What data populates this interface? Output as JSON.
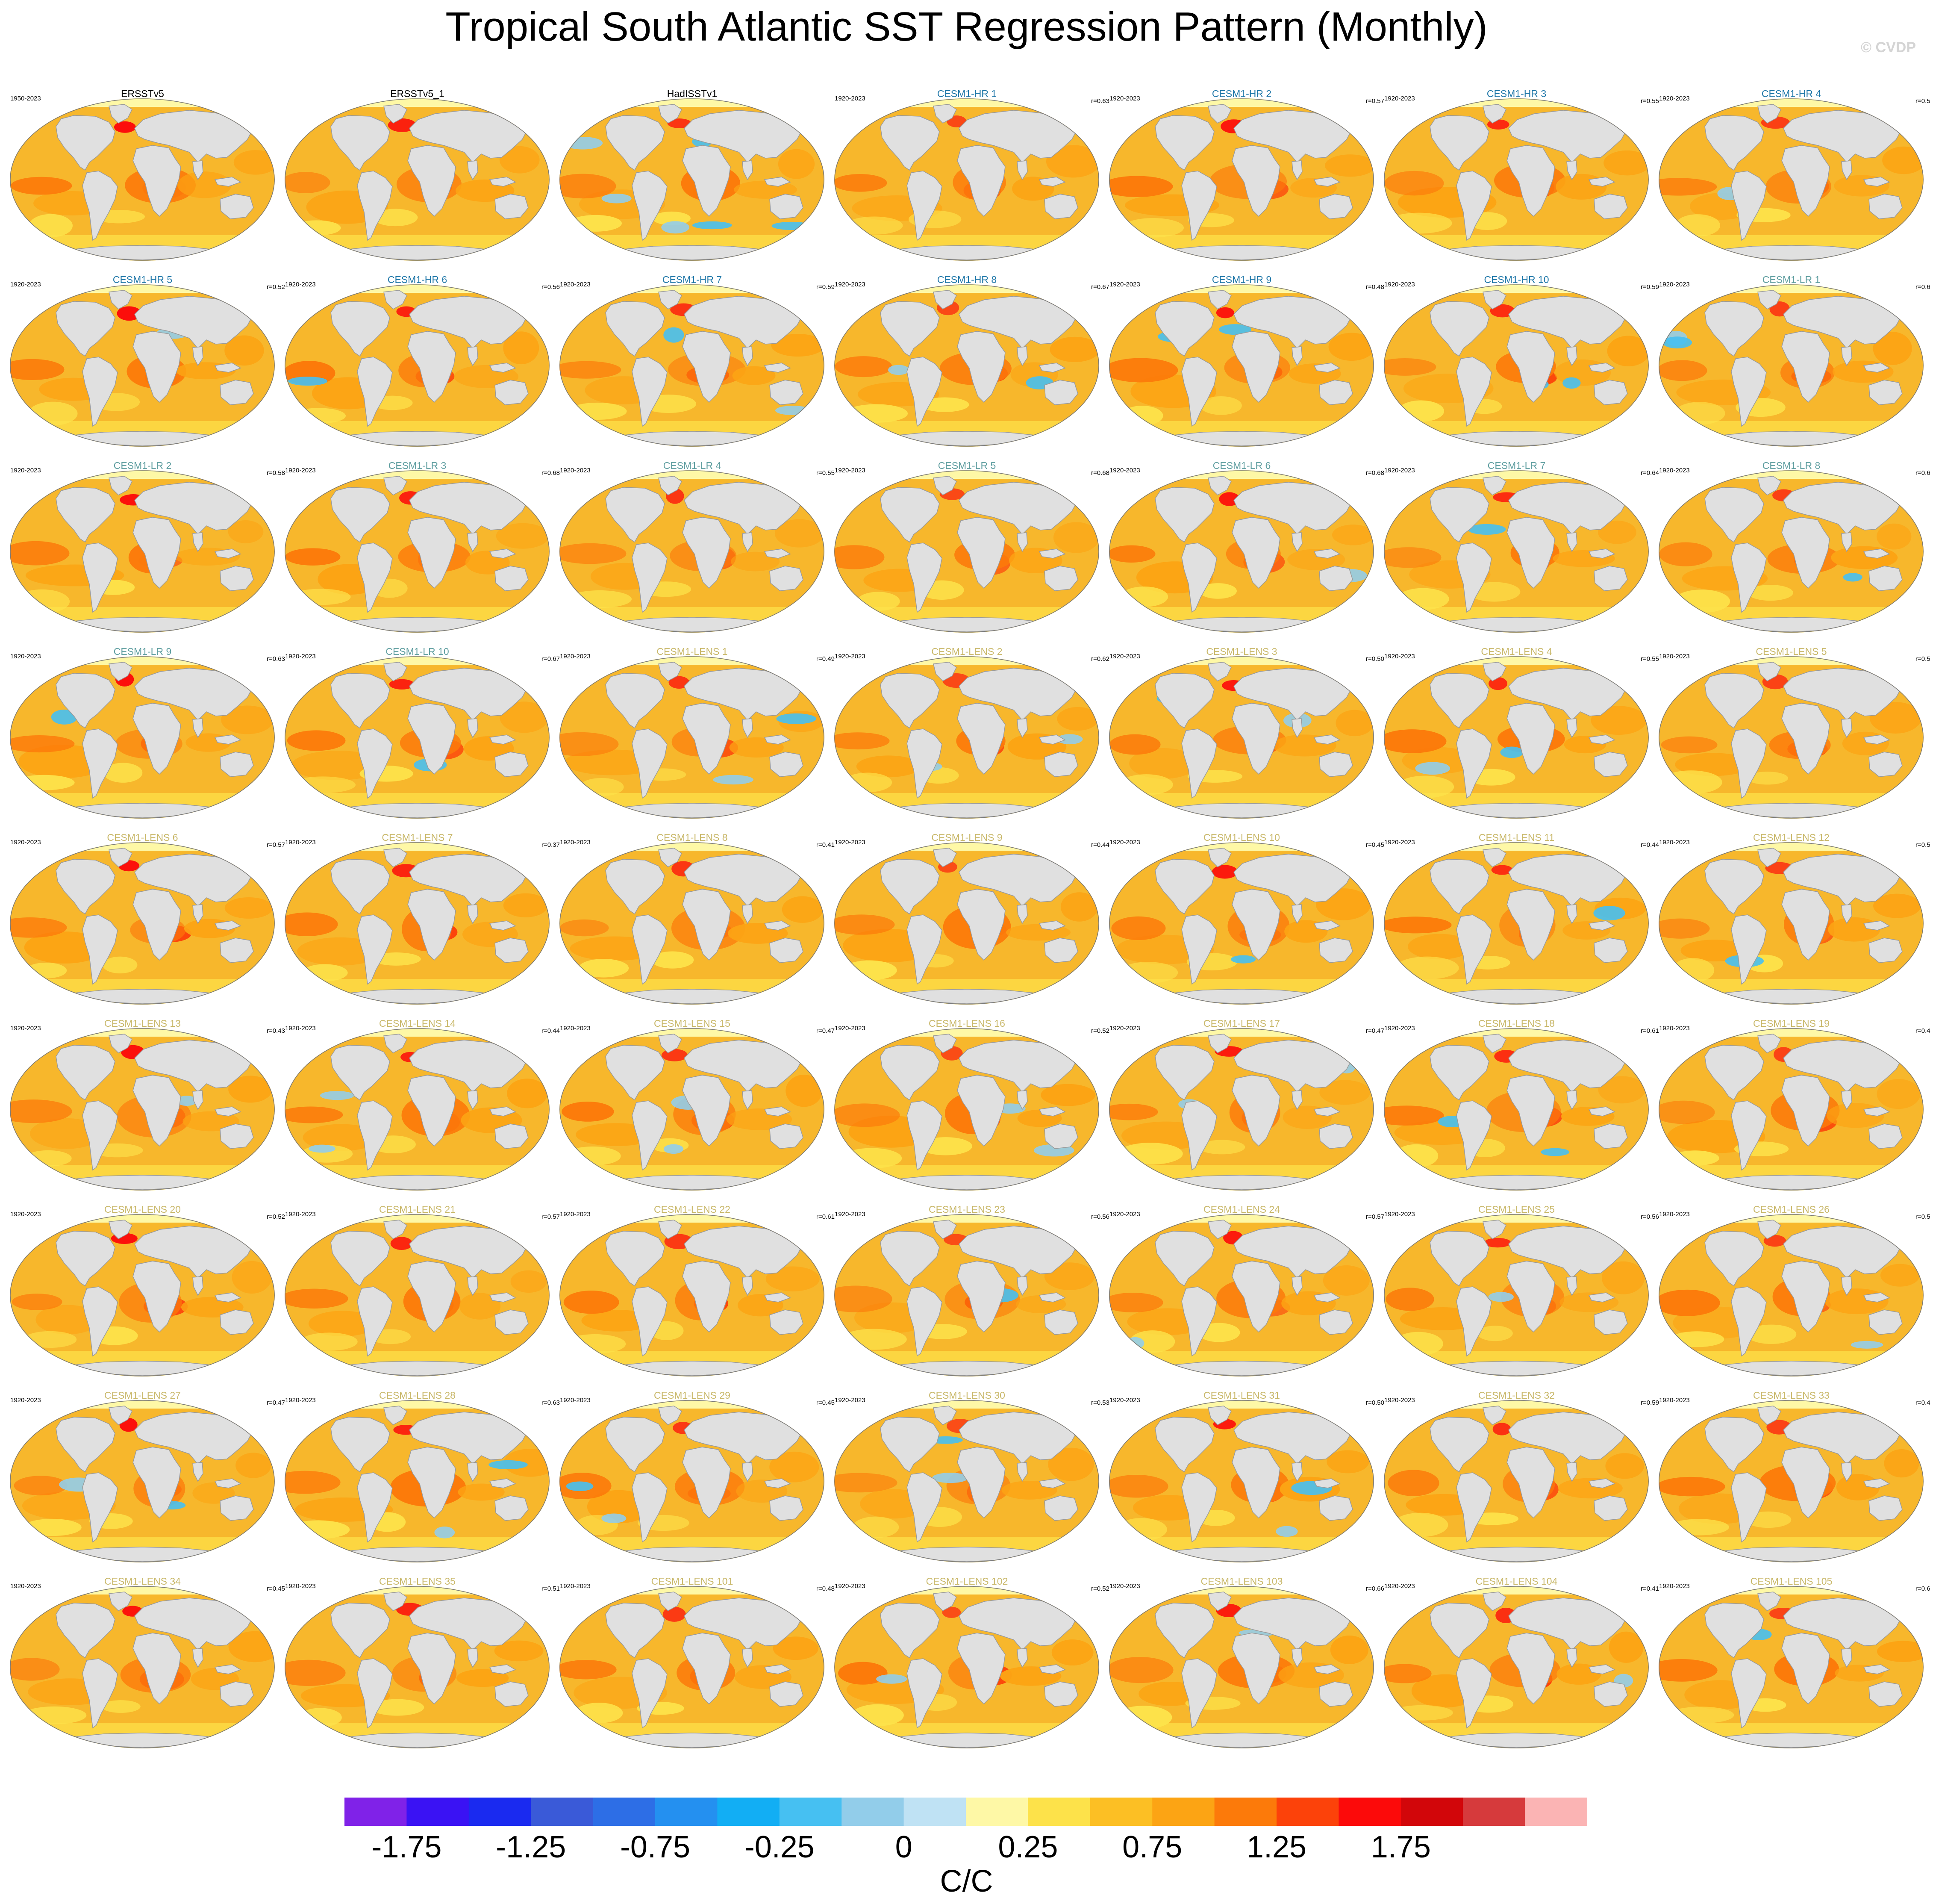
{
  "title": "Tropical South Atlantic SST Regression Pattern (Monthly)",
  "watermark": "© CVDP",
  "colors": {
    "obs_title": "#000000",
    "hr_title": "#1f77a8",
    "lr_title": "#5f9ea0",
    "lens_title": "#c9b86a",
    "land": "#e0e0e0",
    "ocean_base": "#f7b72c"
  },
  "panels": [
    {
      "title": "ERSSTv5",
      "group": "obs",
      "period": "1950-2023",
      "corr": ""
    },
    {
      "title": "ERSSTv5_1",
      "group": "obs",
      "period": "",
      "corr": ""
    },
    {
      "title": "HadISSTv1",
      "group": "obs",
      "period": "",
      "corr": ""
    },
    {
      "title": "CESM1-HR 1",
      "group": "hr",
      "period": "1920-2023",
      "corr": "r=0.63"
    },
    {
      "title": "CESM1-HR 2",
      "group": "hr",
      "period": "1920-2023",
      "corr": "r=0.57"
    },
    {
      "title": "CESM1-HR 3",
      "group": "hr",
      "period": "1920-2023",
      "corr": "r=0.55"
    },
    {
      "title": "CESM1-HR 4",
      "group": "hr",
      "period": "1920-2023",
      "corr": "r=0.5"
    },
    {
      "title": "CESM1-HR 5",
      "group": "hr",
      "period": "1920-2023",
      "corr": "r=0.52"
    },
    {
      "title": "CESM1-HR 6",
      "group": "hr",
      "period": "1920-2023",
      "corr": "r=0.56"
    },
    {
      "title": "CESM1-HR 7",
      "group": "hr",
      "period": "1920-2023",
      "corr": "r=0.59"
    },
    {
      "title": "CESM1-HR 8",
      "group": "hr",
      "period": "1920-2023",
      "corr": "r=0.67"
    },
    {
      "title": "CESM1-HR 9",
      "group": "hr",
      "period": "1920-2023",
      "corr": "r=0.48"
    },
    {
      "title": "CESM1-HR 10",
      "group": "hr",
      "period": "1920-2023",
      "corr": "r=0.59"
    },
    {
      "title": "CESM1-LR 1",
      "group": "lr",
      "period": "1920-2023",
      "corr": "r=0.6"
    },
    {
      "title": "CESM1-LR 2",
      "group": "lr",
      "period": "1920-2023",
      "corr": "r=0.58"
    },
    {
      "title": "CESM1-LR 3",
      "group": "lr",
      "period": "1920-2023",
      "corr": "r=0.68"
    },
    {
      "title": "CESM1-LR 4",
      "group": "lr",
      "period": "1920-2023",
      "corr": "r=0.55"
    },
    {
      "title": "CESM1-LR 5",
      "group": "lr",
      "period": "1920-2023",
      "corr": "r=0.68"
    },
    {
      "title": "CESM1-LR 6",
      "group": "lr",
      "period": "1920-2023",
      "corr": "r=0.68"
    },
    {
      "title": "CESM1-LR 7",
      "group": "lr",
      "period": "1920-2023",
      "corr": "r=0.64"
    },
    {
      "title": "CESM1-LR 8",
      "group": "lr",
      "period": "1920-2023",
      "corr": "r=0.6"
    },
    {
      "title": "CESM1-LR 9",
      "group": "lr",
      "period": "1920-2023",
      "corr": "r=0.63"
    },
    {
      "title": "CESM1-LR 10",
      "group": "lr",
      "period": "1920-2023",
      "corr": "r=0.67"
    },
    {
      "title": "CESM1-LENS 1",
      "group": "lens",
      "period": "1920-2023",
      "corr": "r=0.49"
    },
    {
      "title": "CESM1-LENS 2",
      "group": "lens",
      "period": "1920-2023",
      "corr": "r=0.62"
    },
    {
      "title": "CESM1-LENS 3",
      "group": "lens",
      "period": "1920-2023",
      "corr": "r=0.50"
    },
    {
      "title": "CESM1-LENS 4",
      "group": "lens",
      "period": "1920-2023",
      "corr": "r=0.55"
    },
    {
      "title": "CESM1-LENS 5",
      "group": "lens",
      "period": "1920-2023",
      "corr": "r=0.5"
    },
    {
      "title": "CESM1-LENS 6",
      "group": "lens",
      "period": "1920-2023",
      "corr": "r=0.57"
    },
    {
      "title": "CESM1-LENS 7",
      "group": "lens",
      "period": "1920-2023",
      "corr": "r=0.37"
    },
    {
      "title": "CESM1-LENS 8",
      "group": "lens",
      "period": "1920-2023",
      "corr": "r=0.41"
    },
    {
      "title": "CESM1-LENS 9",
      "group": "lens",
      "period": "1920-2023",
      "corr": "r=0.44"
    },
    {
      "title": "CESM1-LENS 10",
      "group": "lens",
      "period": "1920-2023",
      "corr": "r=0.45"
    },
    {
      "title": "CESM1-LENS 11",
      "group": "lens",
      "period": "1920-2023",
      "corr": "r=0.44"
    },
    {
      "title": "CESM1-LENS 12",
      "group": "lens",
      "period": "1920-2023",
      "corr": "r=0.5"
    },
    {
      "title": "CESM1-LENS 13",
      "group": "lens",
      "period": "1920-2023",
      "corr": "r=0.43"
    },
    {
      "title": "CESM1-LENS 14",
      "group": "lens",
      "period": "1920-2023",
      "corr": "r=0.44"
    },
    {
      "title": "CESM1-LENS 15",
      "group": "lens",
      "period": "1920-2023",
      "corr": "r=0.47"
    },
    {
      "title": "CESM1-LENS 16",
      "group": "lens",
      "period": "1920-2023",
      "corr": "r=0.52"
    },
    {
      "title": "CESM1-LENS 17",
      "group": "lens",
      "period": "1920-2023",
      "corr": "r=0.47"
    },
    {
      "title": "CESM1-LENS 18",
      "group": "lens",
      "period": "1920-2023",
      "corr": "r=0.61"
    },
    {
      "title": "CESM1-LENS 19",
      "group": "lens",
      "period": "1920-2023",
      "corr": "r=0.4"
    },
    {
      "title": "CESM1-LENS 20",
      "group": "lens",
      "period": "1920-2023",
      "corr": "r=0.52"
    },
    {
      "title": "CESM1-LENS 21",
      "group": "lens",
      "period": "1920-2023",
      "corr": "r=0.57"
    },
    {
      "title": "CESM1-LENS 22",
      "group": "lens",
      "period": "1920-2023",
      "corr": "r=0.61"
    },
    {
      "title": "CESM1-LENS 23",
      "group": "lens",
      "period": "1920-2023",
      "corr": "r=0.56"
    },
    {
      "title": "CESM1-LENS 24",
      "group": "lens",
      "period": "1920-2023",
      "corr": "r=0.57"
    },
    {
      "title": "CESM1-LENS 25",
      "group": "lens",
      "period": "1920-2023",
      "corr": "r=0.56"
    },
    {
      "title": "CESM1-LENS 26",
      "group": "lens",
      "period": "1920-2023",
      "corr": "r=0.5"
    },
    {
      "title": "CESM1-LENS 27",
      "group": "lens",
      "period": "1920-2023",
      "corr": "r=0.47"
    },
    {
      "title": "CESM1-LENS 28",
      "group": "lens",
      "period": "1920-2023",
      "corr": "r=0.63"
    },
    {
      "title": "CESM1-LENS 29",
      "group": "lens",
      "period": "1920-2023",
      "corr": "r=0.45"
    },
    {
      "title": "CESM1-LENS 30",
      "group": "lens",
      "period": "1920-2023",
      "corr": "r=0.53"
    },
    {
      "title": "CESM1-LENS 31",
      "group": "lens",
      "period": "1920-2023",
      "corr": "r=0.50"
    },
    {
      "title": "CESM1-LENS 32",
      "group": "lens",
      "period": "1920-2023",
      "corr": "r=0.59"
    },
    {
      "title": "CESM1-LENS 33",
      "group": "lens",
      "period": "1920-2023",
      "corr": "r=0.4"
    },
    {
      "title": "CESM1-LENS 34",
      "group": "lens",
      "period": "1920-2023",
      "corr": "r=0.45"
    },
    {
      "title": "CESM1-LENS 35",
      "group": "lens",
      "period": "1920-2023",
      "corr": "r=0.51"
    },
    {
      "title": "CESM1-LENS 101",
      "group": "lens",
      "period": "1920-2023",
      "corr": "r=0.48"
    },
    {
      "title": "CESM1-LENS 102",
      "group": "lens",
      "period": "1920-2023",
      "corr": "r=0.52"
    },
    {
      "title": "CESM1-LENS 103",
      "group": "lens",
      "period": "1920-2023",
      "corr": "r=0.66"
    },
    {
      "title": "CESM1-LENS 104",
      "group": "lens",
      "period": "1920-2023",
      "corr": "r=0.41"
    },
    {
      "title": "CESM1-LENS 105",
      "group": "lens",
      "period": "1920-2023",
      "corr": "r=0.6"
    }
  ],
  "colorbar": {
    "colors": [
      "#8022e8",
      "#3a12f4",
      "#1a2af0",
      "#3a5ad8",
      "#2d6ee6",
      "#2490f0",
      "#12aef4",
      "#46c0f2",
      "#92cdea",
      "#bfe2f4",
      "#fef8a6",
      "#fde24a",
      "#fcbf24",
      "#fca414",
      "#fc7a0a",
      "#fc420a",
      "#fc0a0a",
      "#d2060a",
      "#d63a3c",
      "#fbb4b4"
    ],
    "tick_labels": [
      "-1.75",
      "-1.25",
      "-0.75",
      "-0.25",
      "0",
      "0.25",
      "0.75",
      "1.25",
      "1.75"
    ],
    "tick_boundary_index": [
      1,
      3,
      5,
      7,
      9,
      11,
      13,
      15,
      17
    ],
    "units": "C/C"
  }
}
